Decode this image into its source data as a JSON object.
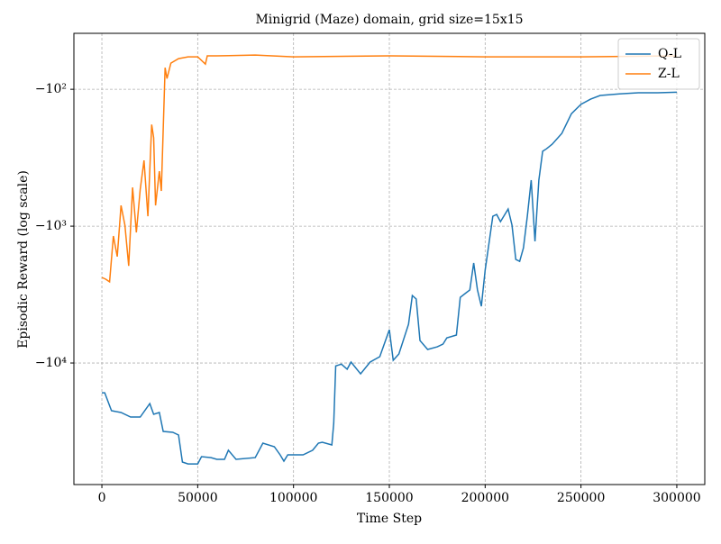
{
  "chart_data": {
    "type": "line",
    "title": "Minigrid (Maze) domain, grid size=15x15",
    "x_label": "Time Step",
    "y_label": "Episodic Reward (log scale)",
    "yscale": "symlog",
    "grid": true,
    "legend": "upper right",
    "xlim": [
      -14600,
      314600
    ],
    "xticks": [
      0,
      50000,
      100000,
      150000,
      200000,
      250000,
      300000
    ],
    "ylim": [
      -77300,
      -39
    ],
    "yticks": [
      {
        "value": -100,
        "label": "−10²"
      },
      {
        "value": -1000,
        "label": "−10³"
      },
      {
        "value": -10000,
        "label": "−10⁴"
      }
    ],
    "series": [
      {
        "name": "Q-L",
        "color": "#1f77b4",
        "x": [
          0,
          1500,
          5000,
          10000,
          15000,
          20000,
          25000,
          27000,
          30000,
          32000,
          37000,
          40000,
          42000,
          45000,
          50000,
          52000,
          57000,
          60000,
          64000,
          66000,
          70000,
          80000,
          84000,
          90000,
          93000,
          95000,
          97000,
          100000,
          105000,
          110000,
          113000,
          115000,
          120000,
          121000,
          122000,
          125000,
          128000,
          130000,
          135000,
          140000,
          145000,
          150000,
          152000,
          155000,
          160000,
          162000,
          164000,
          166000,
          170000,
          175000,
          178000,
          180000,
          185000,
          187000,
          190000,
          192000,
          194000,
          196000,
          198000,
          200000,
          202000,
          204000,
          206000,
          208000,
          212000,
          214000,
          216000,
          218000,
          220000,
          222000,
          224000,
          226000,
          228000,
          230000,
          232000,
          235000,
          240000,
          245000,
          250000,
          255000,
          260000,
          270000,
          280000,
          290000,
          300000
        ],
        "values": [
          -16500,
          -16500,
          -22300,
          -23000,
          -24800,
          -24800,
          -19800,
          -23700,
          -23000,
          -31600,
          -32100,
          -33600,
          -52900,
          -54600,
          -54600,
          -48300,
          -49100,
          -50600,
          -50600,
          -43400,
          -50600,
          -49100,
          -38500,
          -40900,
          -46900,
          -52100,
          -46900,
          -46900,
          -46900,
          -43400,
          -38500,
          -37900,
          -39700,
          -27600,
          -10500,
          -10200,
          -11100,
          -9850,
          -12000,
          -9850,
          -8990,
          -5710,
          -9550,
          -8590,
          -5210,
          -3210,
          -3410,
          -6850,
          -7960,
          -7620,
          -7280,
          -6550,
          -6250,
          -3310,
          -3070,
          -2930,
          -1860,
          -2930,
          -3850,
          -2100,
          -1330,
          -847,
          -821,
          -927,
          -750,
          -984,
          -1750,
          -1810,
          -1440,
          -847,
          -461,
          -1290,
          -461,
          -284,
          -272,
          -252,
          -210,
          -151,
          -129,
          -118,
          -111,
          -108,
          -106,
          -106,
          -105
        ]
      },
      {
        "name": "Z-L",
        "color": "#ff7f0e",
        "x": [
          0,
          2000,
          4000,
          6000,
          8000,
          10000,
          12000,
          14000,
          16000,
          18000,
          20000,
          22000,
          24000,
          26000,
          27000,
          28000,
          30000,
          31000,
          33000,
          34000,
          36000,
          40000,
          45000,
          50000,
          54000,
          55000,
          60000,
          80000,
          100000,
          150000,
          200000,
          250000,
          300000
        ],
        "values": [
          -2370,
          -2440,
          -2550,
          -1180,
          -1670,
          -706,
          -984,
          -1950,
          -521,
          -1110,
          -537,
          -331,
          -847,
          -181,
          -226,
          -706,
          -397,
          -553,
          -69.5,
          -83.4,
          -64.4,
          -59.7,
          -57.9,
          -57.9,
          -65.5,
          -57,
          -57,
          -56.2,
          -57.9,
          -57,
          -57.9,
          -57.9,
          -57
        ]
      }
    ]
  }
}
